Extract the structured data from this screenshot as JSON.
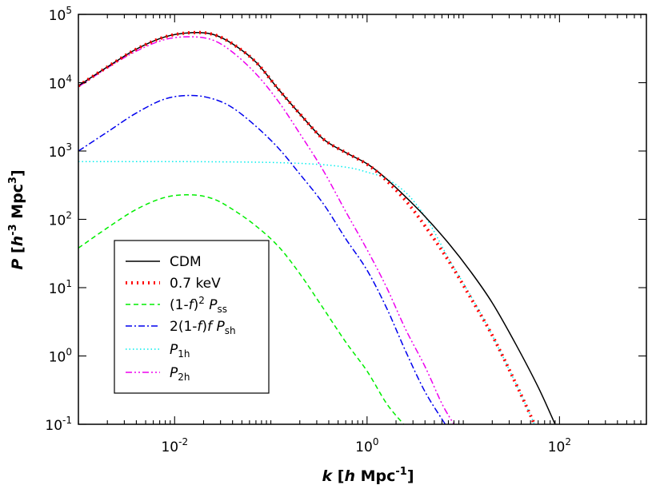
{
  "chart_data": {
    "type": "line",
    "x_scale": "log",
    "y_scale": "log",
    "xlim": [
      0.001,
      800
    ],
    "ylim": [
      0.1,
      100000
    ],
    "xlabel": {
      "var": "k",
      "open": " [",
      "h": "h",
      "unit": " Mpc",
      "exp": "-1",
      "close": "]"
    },
    "ylabel": {
      "var": "P",
      "open": " [",
      "h": "h",
      "exp1": "-3",
      "unit": " Mpc",
      "exp2": "3",
      "close": "]"
    },
    "x_ticks": [
      {
        "value": 0.01,
        "base": "10",
        "exp": "-2"
      },
      {
        "value": 1,
        "base": "10",
        "exp": "0"
      },
      {
        "value": 100,
        "base": "10",
        "exp": "2"
      }
    ],
    "y_ticks": [
      {
        "value": 0.1,
        "base": "10",
        "exp": "-1"
      },
      {
        "value": 1,
        "base": "10",
        "exp": "0"
      },
      {
        "value": 10,
        "base": "10",
        "exp": "1"
      },
      {
        "value": 100,
        "base": "10",
        "exp": "2"
      },
      {
        "value": 1000,
        "base": "10",
        "exp": "3"
      },
      {
        "value": 10000,
        "base": "10",
        "exp": "4"
      },
      {
        "value": 100000,
        "base": "10",
        "exp": "5"
      }
    ],
    "legend_position": "lower-left",
    "series": [
      {
        "id": "cdm",
        "name": "CDM",
        "label": {
          "a": "CDM"
        },
        "color": "#000000",
        "dash": "",
        "width": 1.5,
        "x": [
          0.001,
          0.002,
          0.004,
          0.008,
          0.015,
          0.025,
          0.04,
          0.07,
          0.12,
          0.2,
          0.35,
          0.6,
          1.0,
          1.5,
          2.5,
          4,
          7,
          12,
          20,
          35,
          60,
          90
        ],
        "y": [
          9000,
          17000,
          31000,
          47000,
          54000,
          51000,
          37000,
          20000,
          8000,
          3500,
          1500,
          950,
          650,
          420,
          215,
          110,
          45,
          17,
          6,
          1.5,
          0.35,
          0.1
        ]
      },
      {
        "id": "wdm",
        "name": "0.7 keV",
        "label": {
          "a": "0.7 keV"
        },
        "color": "#ff0000",
        "dash": "2 5",
        "width": 4,
        "x": [
          0.001,
          0.002,
          0.004,
          0.008,
          0.015,
          0.025,
          0.04,
          0.07,
          0.12,
          0.2,
          0.35,
          0.6,
          1.0,
          1.5,
          2.5,
          4,
          7,
          12,
          20,
          35,
          55
        ],
        "y": [
          9000,
          17000,
          31000,
          47000,
          54000,
          51000,
          37000,
          20000,
          8000,
          3500,
          1500,
          950,
          640,
          400,
          190,
          80,
          25,
          7,
          2,
          0.4,
          0.1
        ]
      },
      {
        "id": "pss",
        "name": "(1-f)2 Pss",
        "label": {
          "a": "(1-",
          "f": "f",
          "b": ")",
          "sup": "2",
          "c": " ",
          "p": "P",
          "sub": "ss"
        },
        "color": "#00ee00",
        "dash": "6 4",
        "width": 1.5,
        "x": [
          0.001,
          0.002,
          0.004,
          0.008,
          0.015,
          0.025,
          0.04,
          0.07,
          0.12,
          0.2,
          0.35,
          0.6,
          1.0,
          1.6,
          2.4
        ],
        "y": [
          38,
          75,
          140,
          210,
          228,
          200,
          140,
          80,
          40,
          16,
          5,
          1.6,
          0.6,
          0.2,
          0.1
        ]
      },
      {
        "id": "psh",
        "name": "2(1-f)f Psh",
        "label": {
          "a": "2(1-",
          "f": "f",
          "b": ")",
          "f2": "f",
          "c": " ",
          "p": "P",
          "sub": "sh"
        },
        "color": "#0000ee",
        "dash": "8 3 2 3",
        "width": 1.5,
        "x": [
          0.001,
          0.002,
          0.004,
          0.008,
          0.015,
          0.025,
          0.04,
          0.07,
          0.12,
          0.2,
          0.35,
          0.6,
          1.0,
          1.6,
          2.5,
          4,
          6.5
        ],
        "y": [
          1000,
          1900,
          3600,
          5800,
          6500,
          5800,
          4300,
          2300,
          1100,
          460,
          170,
          52,
          18,
          5,
          1.2,
          0.3,
          0.1
        ]
      },
      {
        "id": "p1h",
        "name": "P1h",
        "label": {
          "p": "P",
          "sub": "1h"
        },
        "color": "#00eeee",
        "dash": "1.5 3",
        "width": 1.5,
        "x": [
          0.001,
          0.01,
          0.05,
          0.1,
          0.2,
          0.4,
          0.7,
          1.0,
          1.5,
          2.2,
          3,
          4.5,
          7,
          12,
          20,
          35,
          55
        ],
        "y": [
          700,
          700,
          690,
          680,
          660,
          620,
          560,
          490,
          410,
          290,
          190,
          85,
          27,
          7.5,
          2,
          0.4,
          0.1
        ]
      },
      {
        "id": "p2h",
        "name": "P2h",
        "label": {
          "p": "P",
          "sub": "2h"
        },
        "color": "#ee00ee",
        "dash": "8 3 2 3 2 3",
        "width": 1.5,
        "x": [
          0.001,
          0.002,
          0.004,
          0.008,
          0.015,
          0.025,
          0.04,
          0.07,
          0.12,
          0.2,
          0.35,
          0.6,
          1.0,
          1.6,
          2.5,
          4,
          6,
          8
        ],
        "y": [
          8700,
          16500,
          29000,
          43000,
          47000,
          42000,
          28000,
          13500,
          5300,
          1800,
          520,
          130,
          36,
          10,
          2.5,
          0.7,
          0.2,
          0.1
        ]
      }
    ]
  }
}
